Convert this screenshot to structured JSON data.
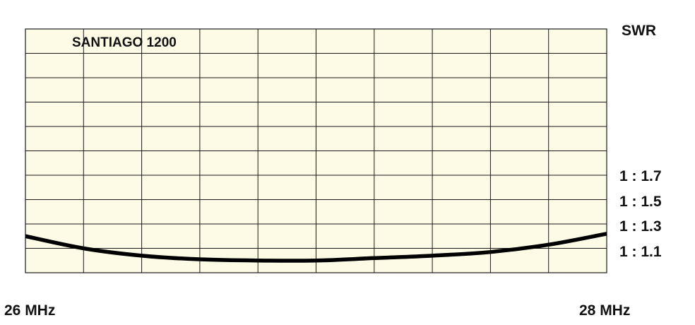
{
  "chart_data": {
    "type": "line",
    "title": "SANTIAGO 1200",
    "ylabel": "SWR",
    "x_start_label": "26 MHz",
    "x_end_label": "28 MHz",
    "xlim": [
      26,
      28
    ],
    "ylim": [
      1.0,
      2.0
    ],
    "y_tick_labels": [
      {
        "label": "1 : 1.7",
        "value": 1.7
      },
      {
        "label": "1 : 1.5",
        "value": 1.5
      },
      {
        "label": "1 : 1.3",
        "value": 1.3
      },
      {
        "label": "1 : 1.1",
        "value": 1.1
      }
    ],
    "grid": true,
    "grid_columns": 10,
    "grid_rows": 10,
    "series": [
      {
        "x": [
          26.0,
          26.2,
          26.4,
          26.6,
          26.8,
          27.0,
          27.2,
          27.4,
          27.6,
          27.8,
          28.0
        ],
        "y": [
          1.15,
          1.1,
          1.07,
          1.055,
          1.05,
          1.05,
          1.06,
          1.07,
          1.085,
          1.115,
          1.16
        ]
      }
    ],
    "colors": {
      "plot_background": "#fdfbe6",
      "grid": "#1a1a1a",
      "line": "#000000",
      "text": "#111111"
    }
  }
}
